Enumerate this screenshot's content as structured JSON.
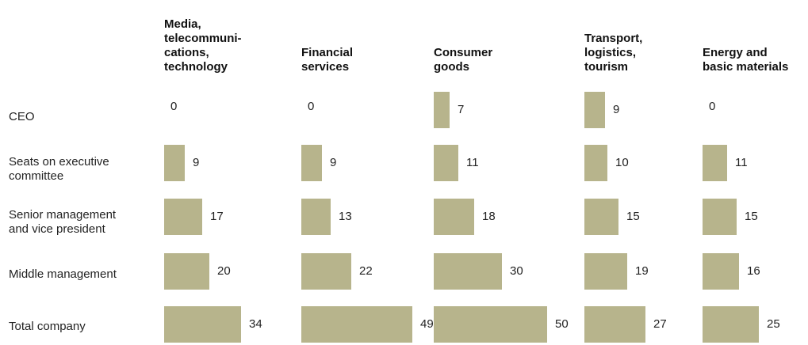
{
  "chart_data": {
    "type": "bar",
    "columns": [
      "Media,\ntelecommuni-\ncations,\ntechnology",
      "Financial\nservices",
      "Consumer\ngoods",
      "Transport,\nlogistics,\ntourism",
      "Energy and\nbasic materials"
    ],
    "rows": [
      "CEO",
      "Seats on executive\ncommittee",
      "Senior management\nand vice president",
      "Middle management",
      "Total company"
    ],
    "values": [
      [
        0,
        0,
        7,
        9,
        0
      ],
      [
        9,
        9,
        11,
        10,
        11
      ],
      [
        17,
        13,
        18,
        15,
        15
      ],
      [
        20,
        22,
        30,
        19,
        16
      ],
      [
        34,
        49,
        50,
        27,
        25
      ]
    ],
    "bar_color": "#b7b48c"
  }
}
